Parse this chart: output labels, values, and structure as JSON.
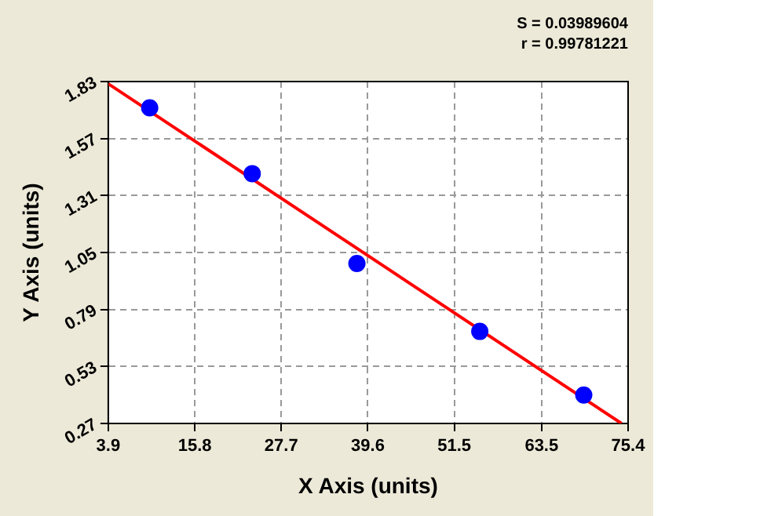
{
  "chart_data": {
    "type": "scatter",
    "xlabel": "X Axis (units)",
    "ylabel": "Y Axis (units)",
    "annotations": [
      "S = 0.03989604",
      "r = 0.99781221"
    ],
    "series": [
      {
        "type": "scatter",
        "color": "#0000ff",
        "x": [
          9.6,
          23.7,
          38.1,
          55.0,
          69.3
        ],
        "values": [
          1.71,
          1.41,
          1.0,
          0.69,
          0.4
        ],
        "marker": "circle"
      },
      {
        "type": "line",
        "color": "#ff0000",
        "x": [
          3.9,
          74.5
        ],
        "values": [
          1.82,
          0.27
        ],
        "marker": "none",
        "line_style": "solid"
      }
    ],
    "xlim": [
      3.9,
      75.4
    ],
    "xticks": [
      3.9,
      15.8,
      27.7,
      39.6,
      51.5,
      63.5,
      75.4
    ],
    "ylim": [
      0.27,
      1.83
    ],
    "yticks": [
      0.27,
      0.53,
      0.79,
      1.05,
      1.31,
      1.57,
      1.83
    ],
    "grid": true,
    "legend": false
  }
}
